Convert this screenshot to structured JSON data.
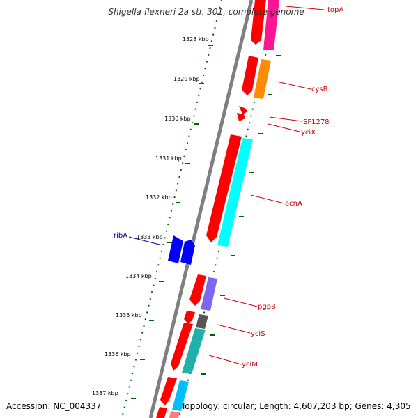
{
  "title": "Shigella flexneri 2a str. 301, complete genome",
  "footer": {
    "accession": "Accession: NC_004337",
    "topology": "Topology: circular; Length: 4,607,203 bp; Genes: 4,305"
  },
  "colors": {
    "backbone": "#7f7f7f",
    "tick": "#006400",
    "forward_label": "#cc0000",
    "reverse_label": "#0000aa"
  },
  "ticks": [
    "1328 kbp",
    "1329 kbp",
    "1330 kbp",
    "1331 kbp",
    "1332 kbp",
    "1333 kbp",
    "1334 kbp",
    "1335 kbp",
    "1336 kbp",
    "1337 kbp"
  ],
  "gene_labels": [
    {
      "text": "topA",
      "strand": "forward"
    },
    {
      "text": "cysB",
      "strand": "forward"
    },
    {
      "text": "SF1278",
      "strand": "forward"
    },
    {
      "text": "yciX",
      "strand": "forward"
    },
    {
      "text": "acnA",
      "strand": "forward"
    },
    {
      "text": "ribA",
      "strand": "reverse"
    },
    {
      "text": "pgpB",
      "strand": "forward"
    },
    {
      "text": "yciS",
      "strand": "forward"
    },
    {
      "text": "yciM",
      "strand": "forward"
    }
  ]
}
